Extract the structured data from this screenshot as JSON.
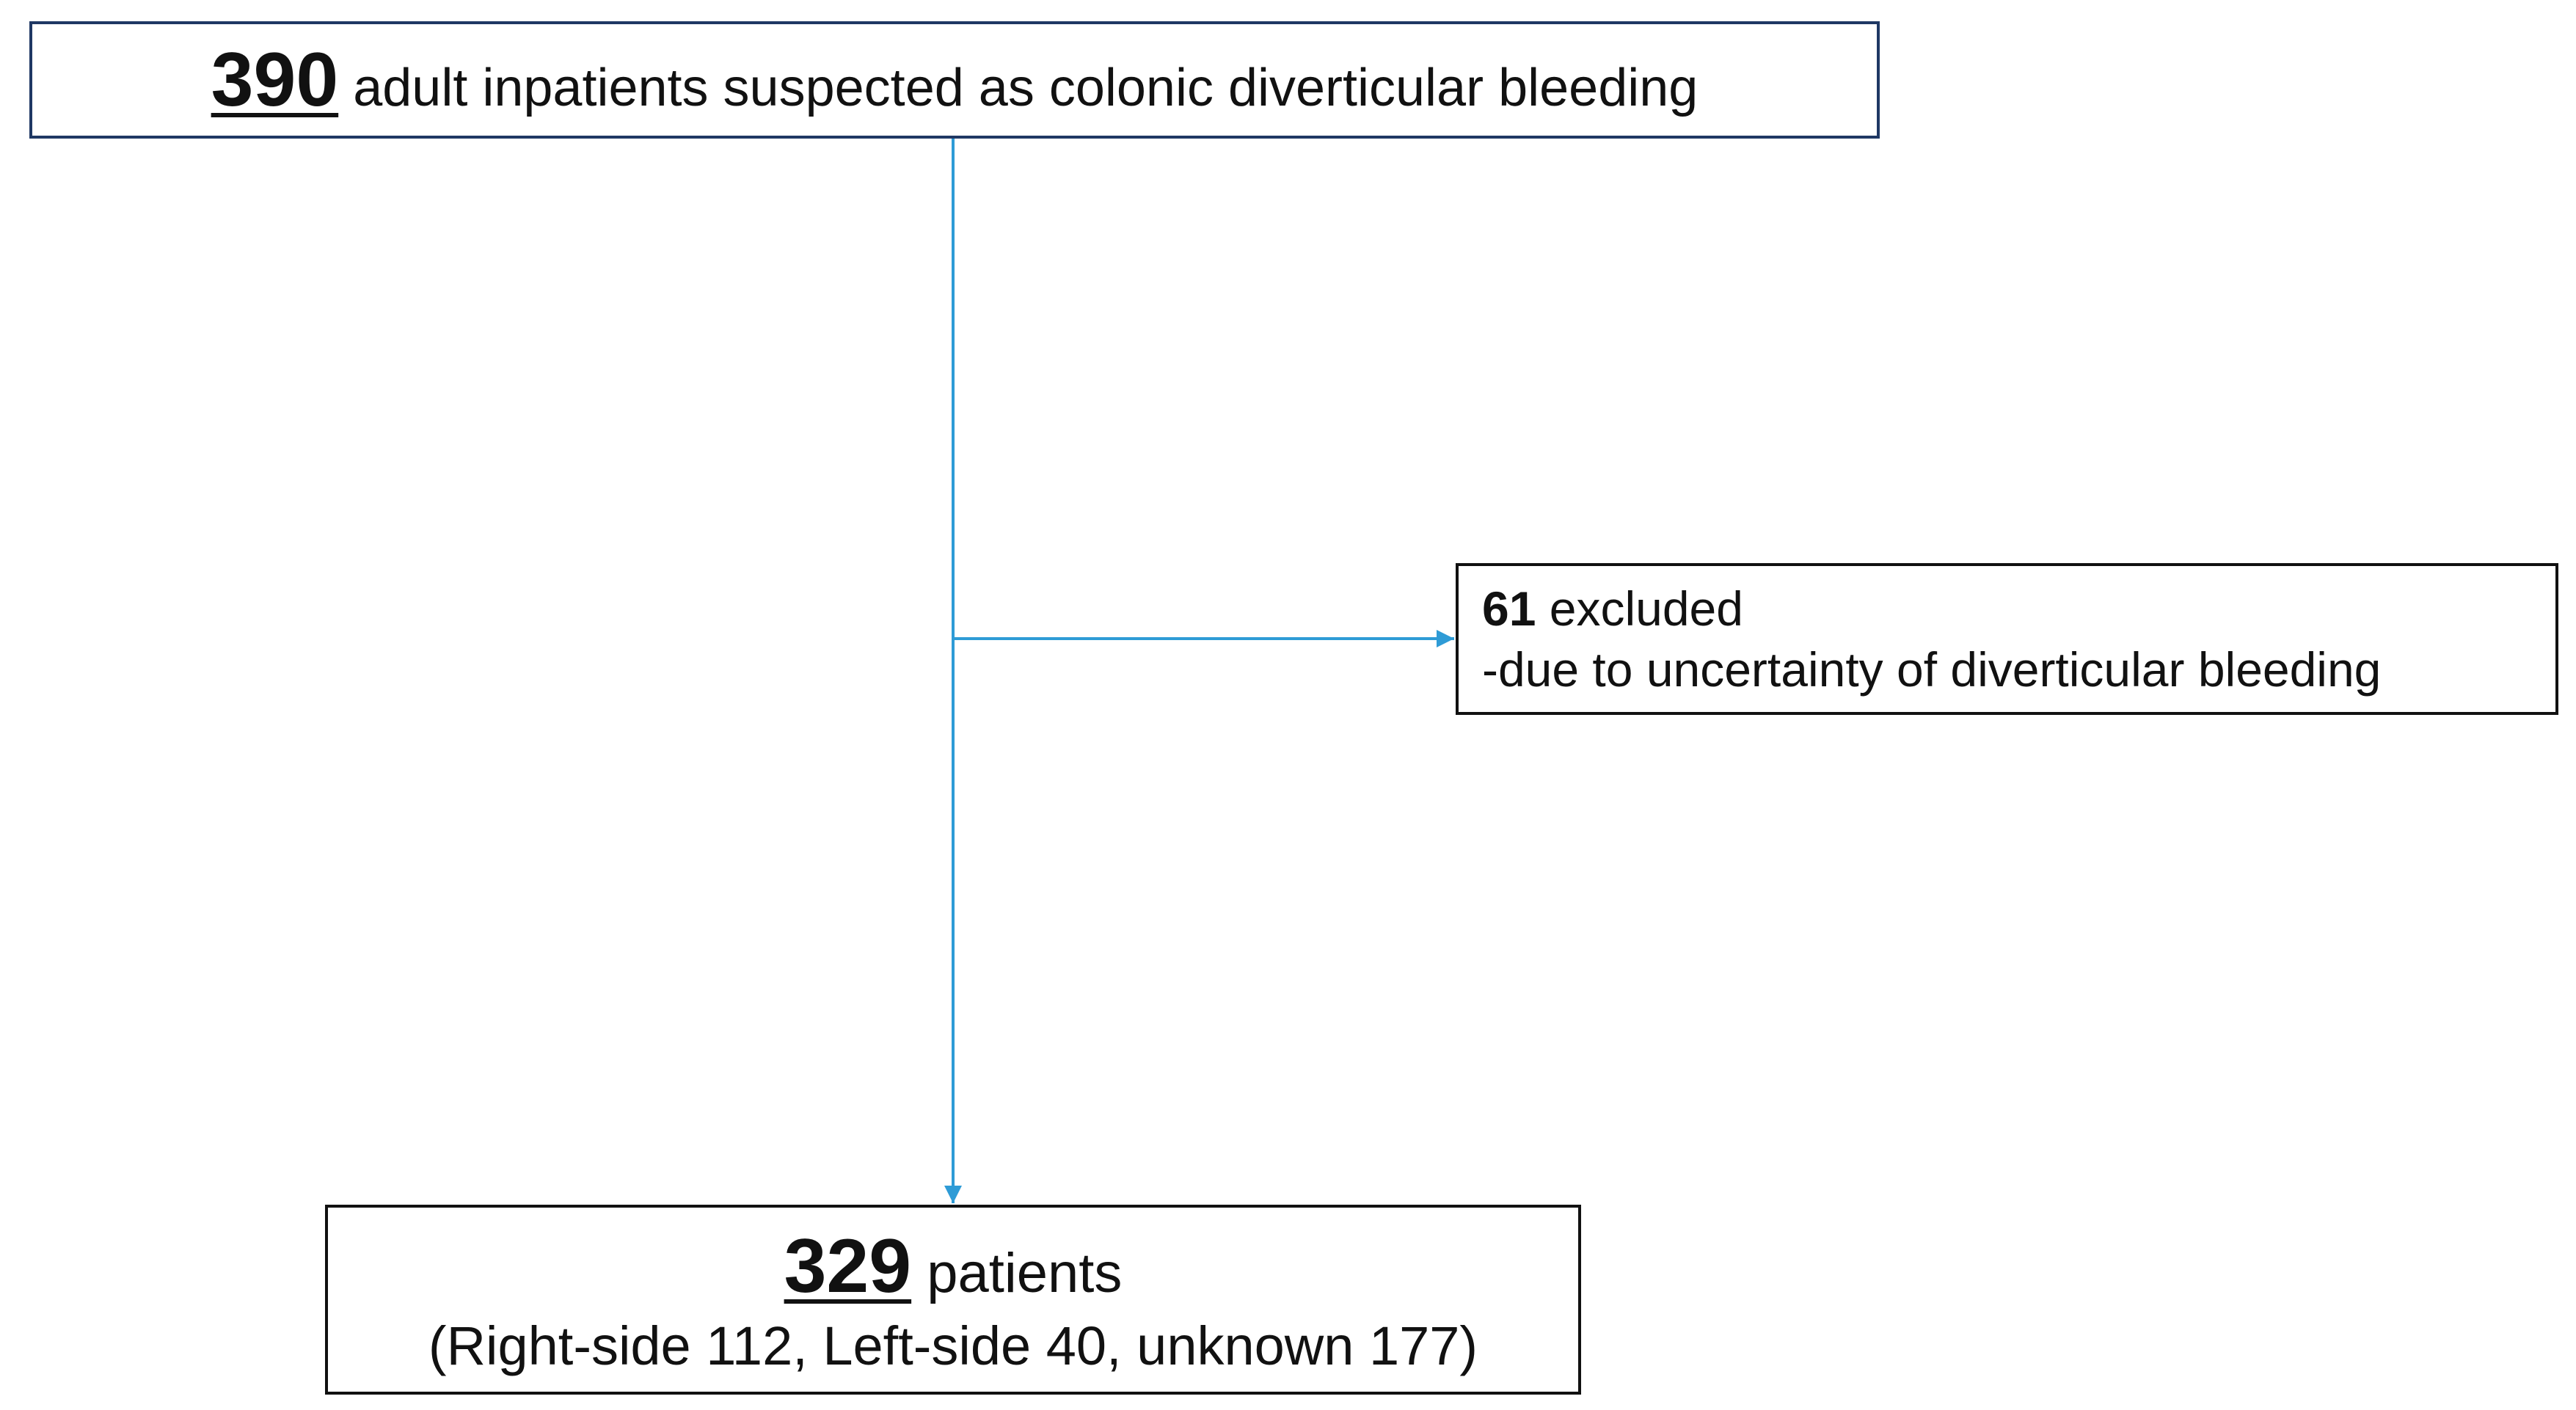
{
  "nodes": [
    {
      "count": 390,
      "label": "adult inpatients suspected as colonic diverticular bleeding"
    },
    {
      "count": 61,
      "label": "excluded",
      "detail": "-due to uncertainty of diverticular bleeding"
    },
    {
      "count": 329,
      "label": "patients",
      "detail": "(Right-side 112, Left-side 40, unknown 177)"
    }
  ]
}
